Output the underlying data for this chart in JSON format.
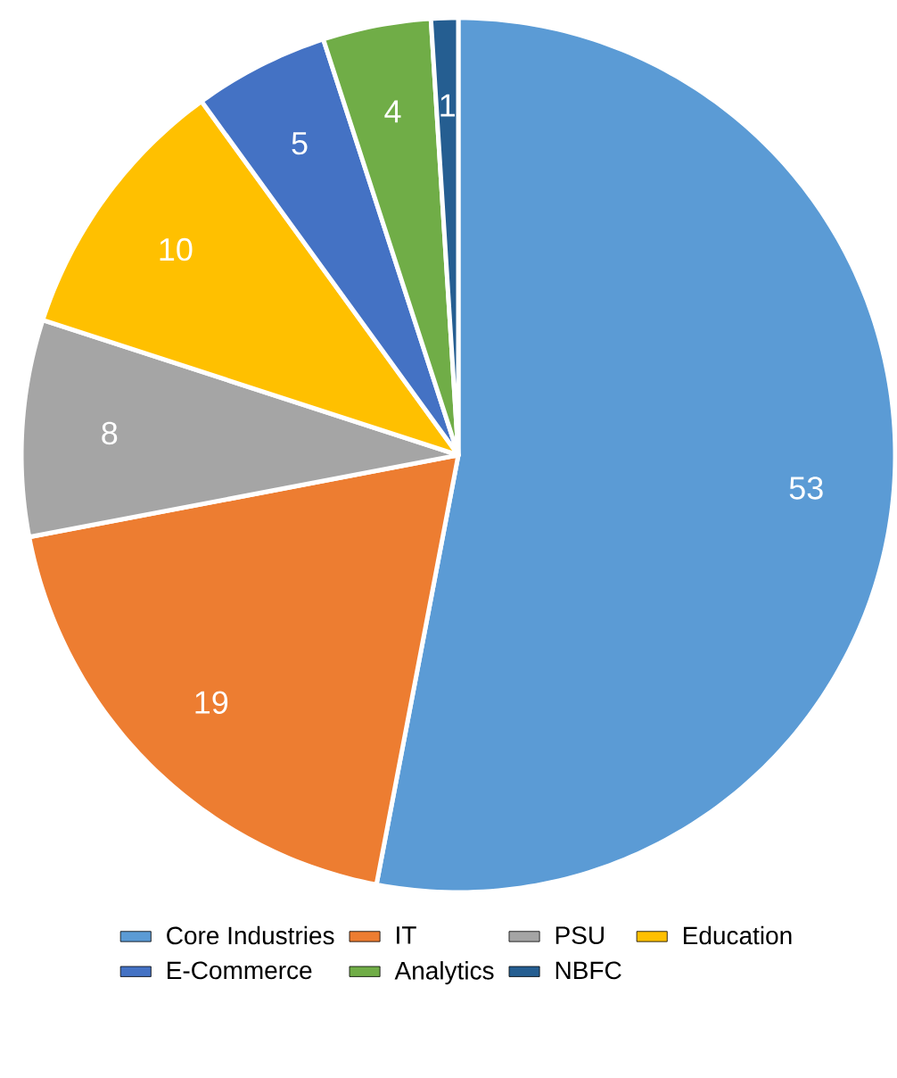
{
  "chart_data": {
    "type": "pie",
    "categories": [
      "Core Industries",
      "IT",
      "PSU",
      "Education",
      "E-Commerce",
      "Analytics",
      "NBFC"
    ],
    "values": [
      53,
      19,
      8,
      10,
      5,
      4,
      1
    ],
    "colors": [
      "#5b9bd5",
      "#ed7d31",
      "#a5a5a5",
      "#ffc000",
      "#4472c4",
      "#70ad47",
      "#255e91"
    ],
    "data_labels": true,
    "legend": "bottom"
  }
}
